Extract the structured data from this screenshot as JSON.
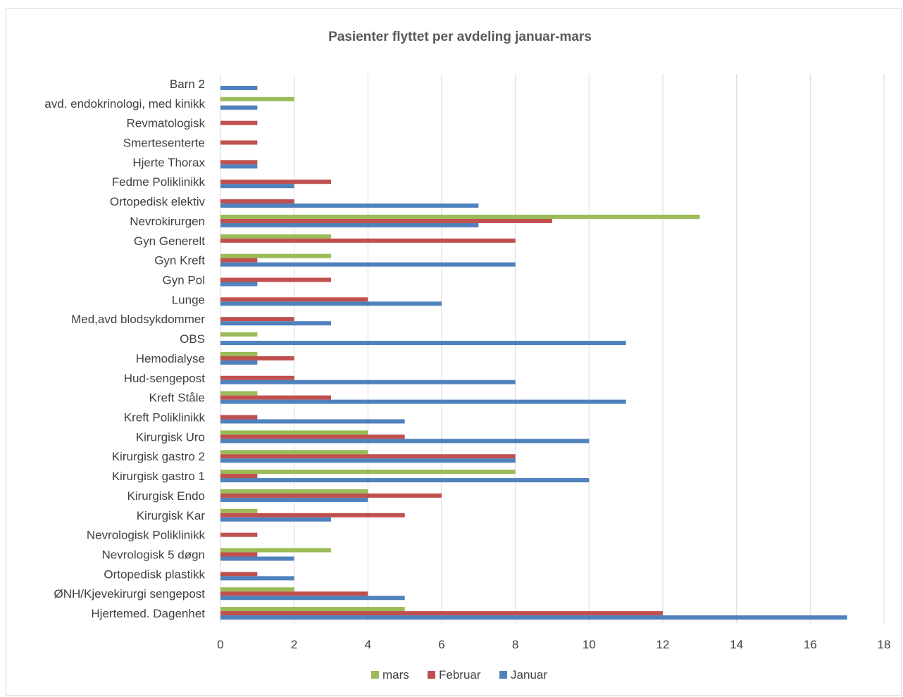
{
  "chart_data": {
    "type": "bar",
    "orientation": "horizontal",
    "title": "Pasienter flyttet per avdeling januar-mars",
    "xlabel": "",
    "ylabel": "",
    "xlim": [
      0,
      18
    ],
    "x_ticks": [
      0,
      2,
      4,
      6,
      8,
      10,
      12,
      14,
      16,
      18
    ],
    "grid": "vertical",
    "legend_position": "bottom",
    "categories": [
      "Barn 2",
      "avd. endokrinologi, med kinikk",
      "Revmatologisk",
      "Smertesenterte",
      "Hjerte Thorax",
      "Fedme Poliklinikk",
      "Ortopedisk elektiv",
      "Nevrokirurgen",
      "Gyn Generelt",
      "Gyn Kreft",
      "Gyn Pol",
      "Lunge",
      "Med,avd blodsykdommer",
      "OBS",
      "Hemodialyse",
      "Hud-sengepost",
      "Kreft Ståle",
      "Kreft Poliklinikk",
      "Kirurgisk Uro",
      "Kirurgisk gastro 2",
      "Kirurgisk gastro 1",
      "Kirurgisk Endo",
      "Kirurgisk Kar",
      "Nevrologisk Poliklinikk",
      "Nevrologisk 5 døgn",
      "Ortopedisk plastikk",
      "ØNH/Kjevekirurgi sengepost",
      "Hjertemed. Dagenhet"
    ],
    "series": [
      {
        "name": "mars",
        "color": "#9BBB59",
        "values": [
          0,
          2,
          0,
          0,
          0,
          0,
          0,
          13,
          3,
          3,
          0,
          0,
          0,
          1,
          1,
          0,
          1,
          0,
          4,
          4,
          8,
          4,
          1,
          0,
          3,
          0,
          2,
          5
        ]
      },
      {
        "name": "Februar",
        "color": "#C0504D",
        "values": [
          0,
          0,
          1,
          1,
          1,
          3,
          2,
          9,
          8,
          1,
          3,
          4,
          2,
          0,
          2,
          2,
          3,
          1,
          5,
          8,
          1,
          6,
          5,
          1,
          1,
          1,
          4,
          12
        ]
      },
      {
        "name": "Januar",
        "color": "#4F81BD",
        "values": [
          1,
          1,
          0,
          0,
          1,
          2,
          7,
          7,
          0,
          8,
          1,
          6,
          3,
          11,
          1,
          8,
          11,
          5,
          10,
          8,
          10,
          4,
          3,
          0,
          2,
          2,
          5,
          17
        ]
      }
    ],
    "legend_order": [
      "mars",
      "Februar",
      "Januar"
    ],
    "gridline_color": "#d9d9d9"
  }
}
